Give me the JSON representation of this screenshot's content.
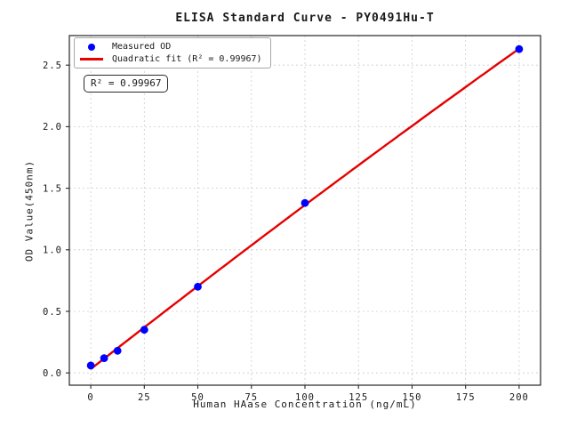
{
  "figure": {
    "title": "ELISA Standard Curve - PY0491Hu-T",
    "background": "#ffffff"
  },
  "chart_data": {
    "type": "scatter",
    "title": "ELISA Standard Curve - PY0491Hu-T",
    "xlabel": "Human HAase Concentration (ng/mL)",
    "ylabel": "OD Value(450nm)",
    "xlim": [
      -10,
      210
    ],
    "ylim": [
      -0.1,
      2.74
    ],
    "x_ticks": [
      0,
      25,
      50,
      75,
      100,
      125,
      150,
      175,
      200
    ],
    "x_tick_labels": [
      "0",
      "25",
      "50",
      "75",
      "100",
      "125",
      "150",
      "175",
      "200"
    ],
    "y_ticks": [
      0.0,
      0.5,
      1.0,
      1.5,
      2.0,
      2.5
    ],
    "y_tick_labels": [
      "0.0",
      "0.5",
      "1.0",
      "1.5",
      "2.0",
      "2.5"
    ],
    "grid": true,
    "grid_style": "dashed",
    "legend_position": "upper-left",
    "series": [
      {
        "name": "Measured OD",
        "type": "scatter",
        "marker": "circle",
        "color": "#0000ff",
        "x": [
          0,
          6.25,
          12.5,
          25,
          50,
          100,
          200
        ],
        "y": [
          0.06,
          0.12,
          0.18,
          0.35,
          0.7,
          1.38,
          2.63
        ]
      },
      {
        "name": "Quadratic fit (R² = 0.99967)",
        "type": "line",
        "fit": "quadratic",
        "color": "#e60000",
        "x_range": [
          0,
          200
        ],
        "r_squared": 0.99967
      }
    ],
    "annotation": "R² = 0.99967"
  },
  "legend": {
    "items": [
      {
        "label": "Measured OD",
        "marker": "dot",
        "color": "#0000ff"
      },
      {
        "label": "Quadratic fit (R² = 0.99967)",
        "marker": "line",
        "color": "#e60000"
      }
    ]
  },
  "colors": {
    "marker": "#0000ff",
    "fit_line": "#e60000",
    "grid": "#cccccc",
    "spine": "#262626",
    "text": "#1a1a1a",
    "legend_border": "#a6a6a6"
  }
}
